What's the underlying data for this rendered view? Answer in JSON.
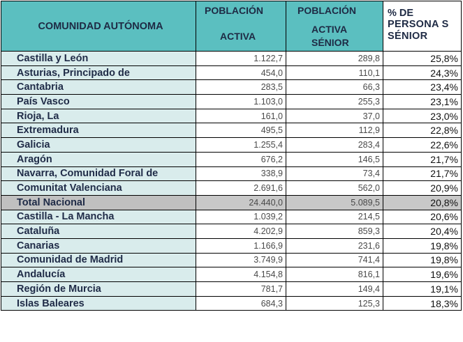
{
  "headers": {
    "comunidad": "COMUNIDAD AUTÓNOMA",
    "poblacion_activa_l1": "POBLACIÓN",
    "poblacion_activa_l2": "ACTIVA",
    "senior_l1": "POBLACIÓN",
    "senior_l2": "ACTIVA",
    "senior_l3": "SÉNIOR",
    "pct_l1": "% DE",
    "pct_l2": "PERSONA S",
    "pct_l3": "SÉNIOR"
  },
  "rows": [
    {
      "name": "Castilla y León",
      "activa": "1.122,7",
      "senior": "289,8",
      "pct": "25,8%"
    },
    {
      "name": "Asturias, Principado de",
      "activa": "454,0",
      "senior": "110,1",
      "pct": "24,3%"
    },
    {
      "name": "Cantabria",
      "activa": "283,5",
      "senior": "66,3",
      "pct": "23,4%"
    },
    {
      "name": "País Vasco",
      "activa": "1.103,0",
      "senior": "255,3",
      "pct": "23,1%"
    },
    {
      "name": "Rioja, La",
      "activa": "161,0",
      "senior": "37,0",
      "pct": "23,0%"
    },
    {
      "name": "Extremadura",
      "activa": "495,5",
      "senior": "112,9",
      "pct": "22,8%"
    },
    {
      "name": "Galicia",
      "activa": "1.255,4",
      "senior": "283,4",
      "pct": "22,6%"
    },
    {
      "name": "Aragón",
      "activa": "676,2",
      "senior": "146,5",
      "pct": "21,7%"
    },
    {
      "name": "Navarra, Comunidad Foral de",
      "activa": "338,9",
      "senior": "73,4",
      "pct": "21,7%"
    },
    {
      "name": "Comunitat Valenciana",
      "activa": "2.691,6",
      "senior": "562,0",
      "pct": "20,9%"
    },
    {
      "name": "Total Nacional",
      "activa": "24.440,0",
      "senior": "5.089,5",
      "pct": "20,8%",
      "total": true
    },
    {
      "name": "Castilla - La Mancha",
      "activa": "1.039,2",
      "senior": "214,5",
      "pct": "20,6%"
    },
    {
      "name": "Cataluña",
      "activa": "4.202,9",
      "senior": "859,3",
      "pct": "20,4%"
    },
    {
      "name": "Canarias",
      "activa": "1.166,9",
      "senior": "231,6",
      "pct": "19,8%"
    },
    {
      "name": "Comunidad de Madrid",
      "activa": "3.749,9",
      "senior": "741,4",
      "pct": "19,8%"
    },
    {
      "name": "Andalucía",
      "activa": "4.154,8",
      "senior": "816,1",
      "pct": "19,6%"
    },
    {
      "name": "Región de Murcia",
      "activa": "781,7",
      "senior": "149,4",
      "pct": "19,1%"
    },
    {
      "name": "Islas Baleares",
      "activa": "684,3",
      "senior": "125,3",
      "pct": "18,3%"
    }
  ],
  "colors": {
    "header_bg": "#5bbfc0",
    "name_bg": "#d9ecec",
    "total_bg": "#c0c0c0"
  }
}
